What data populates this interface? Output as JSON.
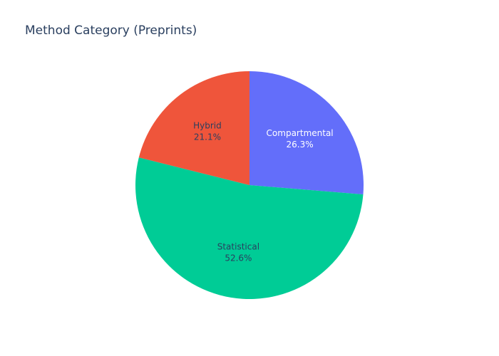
{
  "chart_data": {
    "type": "pie",
    "title": "Method Category (Preprints)",
    "legend": "none",
    "slices": [
      {
        "label": "Compartmental",
        "value": 26.3,
        "percent_label": "26.3%",
        "color": "#636efa",
        "text_color": "#ffffff"
      },
      {
        "label": "Statistical",
        "value": 52.6,
        "percent_label": "52.6%",
        "color": "#00cc96",
        "text_color": "#2a3f5f"
      },
      {
        "label": "Hybrid",
        "value": 21.1,
        "percent_label": "21.1%",
        "color": "#ef553b",
        "text_color": "#2a3f5f"
      }
    ]
  }
}
